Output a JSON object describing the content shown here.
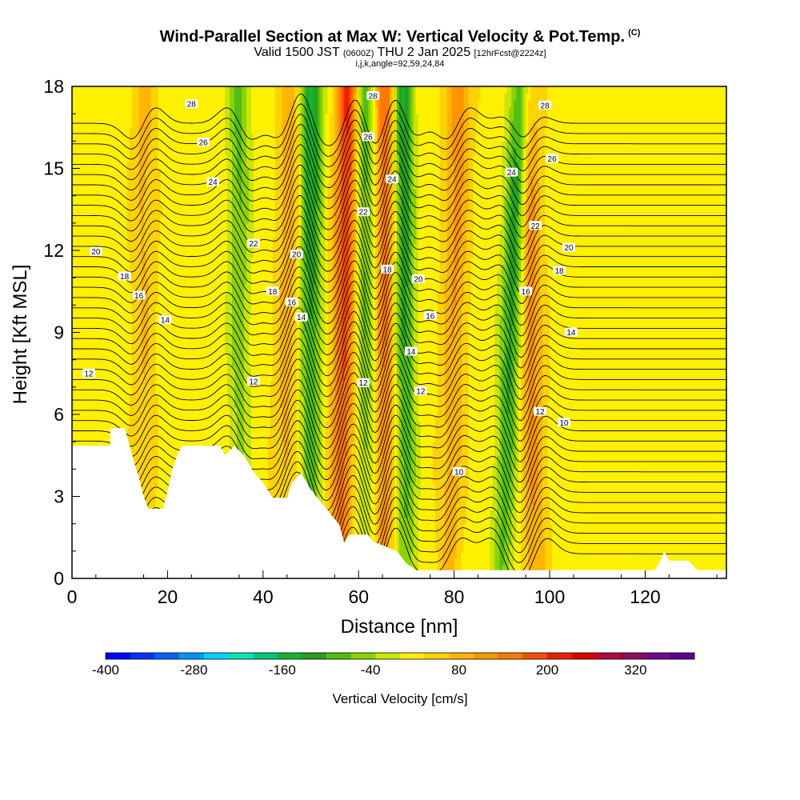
{
  "title": {
    "main": "Wind-Parallel Section at Max W: Vertical Velocity & Pot.Temp.",
    "copyright": "(C)",
    "valid_prefix": "Valid 1500 JST",
    "valid_utc": "(0600Z)",
    "valid_date": "THU 2 Jan 2025",
    "forecast": "[12hrFcst@2224z]",
    "params": "i,j,k,angle=92,59,24,84"
  },
  "chart_data": {
    "type": "heatmap",
    "xlabel": "Distance [nm]",
    "ylabel": "Height [Kft MSL]",
    "xlim": [
      0,
      137
    ],
    "ylim": [
      0,
      18
    ],
    "x_ticks": [
      0,
      20,
      40,
      60,
      80,
      100,
      120
    ],
    "y_ticks": [
      0,
      3,
      6,
      9,
      12,
      15,
      18
    ],
    "colorbar": {
      "label": "Vertical Velocity [cm/s]",
      "range": [
        -400,
        400
      ],
      "tick_values": [
        -400,
        -280,
        -160,
        -40,
        80,
        200,
        320
      ],
      "colors": [
        "#0000ff",
        "#0032ff",
        "#0064ff",
        "#0096ff",
        "#00d2ff",
        "#00e6b4",
        "#00c878",
        "#14b432",
        "#28a01e",
        "#50be14",
        "#8cd200",
        "#c8e600",
        "#fff000",
        "#ffd200",
        "#ffb400",
        "#ff9600",
        "#ff7800",
        "#ff4b00",
        "#f01e00",
        "#dc0000",
        "#b40a32",
        "#8c0a64",
        "#6e0a8c",
        "#5a0096"
      ]
    },
    "potential_temperature_contours": {
      "labeled_values": [
        10,
        12,
        14,
        16,
        18,
        20,
        22,
        24,
        26,
        28
      ],
      "label_positions": [
        {
          "v": 28,
          "x": 25,
          "y": 17.35
        },
        {
          "v": 26,
          "x": 27.5,
          "y": 15.95
        },
        {
          "v": 24,
          "x": 29.5,
          "y": 14.5
        },
        {
          "v": 22,
          "x": 38,
          "y": 12.25
        },
        {
          "v": 20,
          "x": 5,
          "y": 11.95
        },
        {
          "v": 20,
          "x": 47,
          "y": 11.85
        },
        {
          "v": 18,
          "x": 11,
          "y": 11.05
        },
        {
          "v": 16,
          "x": 14,
          "y": 10.35
        },
        {
          "v": 18,
          "x": 42,
          "y": 10.5
        },
        {
          "v": 16,
          "x": 46,
          "y": 10.1
        },
        {
          "v": 14,
          "x": 19.5,
          "y": 9.45
        },
        {
          "v": 14,
          "x": 48,
          "y": 9.55
        },
        {
          "v": 12,
          "x": 3.5,
          "y": 7.5
        },
        {
          "v": 12,
          "x": 38,
          "y": 7.2
        },
        {
          "v": 28,
          "x": 63,
          "y": 17.65
        },
        {
          "v": 26,
          "x": 62,
          "y": 16.15
        },
        {
          "v": 24,
          "x": 67,
          "y": 14.6
        },
        {
          "v": 22,
          "x": 61,
          "y": 13.4
        },
        {
          "v": 18,
          "x": 66,
          "y": 11.3
        },
        {
          "v": 20,
          "x": 72.5,
          "y": 10.95
        },
        {
          "v": 16,
          "x": 75,
          "y": 9.6
        },
        {
          "v": 14,
          "x": 71,
          "y": 8.3
        },
        {
          "v": 12,
          "x": 61,
          "y": 7.15
        },
        {
          "v": 12,
          "x": 73,
          "y": 6.85
        },
        {
          "v": 10,
          "x": 81,
          "y": 3.9
        },
        {
          "v": 28,
          "x": 99,
          "y": 17.3
        },
        {
          "v": 26,
          "x": 100.5,
          "y": 15.35
        },
        {
          "v": 24,
          "x": 92,
          "y": 14.85
        },
        {
          "v": 22,
          "x": 97,
          "y": 12.9
        },
        {
          "v": 20,
          "x": 104,
          "y": 12.1
        },
        {
          "v": 18,
          "x": 102,
          "y": 11.25
        },
        {
          "v": 16,
          "x": 95,
          "y": 10.5
        },
        {
          "v": 14,
          "x": 104.5,
          "y": 9.0
        },
        {
          "v": 12,
          "x": 98,
          "y": 6.1
        },
        {
          "v": 10,
          "x": 103,
          "y": 5.7
        }
      ]
    },
    "updraft_bands": [
      {
        "center_x_bottom": 15,
        "center_x_top": 15,
        "peak_cm_s": 60
      },
      {
        "center_x_bottom": 44,
        "center_x_top": 46,
        "peak_cm_s": 80
      },
      {
        "center_x_bottom": 56,
        "center_x_top": 58,
        "peak_cm_s": 200
      },
      {
        "center_x_bottom": 65,
        "center_x_top": 66,
        "peak_cm_s": 160
      },
      {
        "center_x_bottom": 79,
        "center_x_top": 81,
        "peak_cm_s": 100
      },
      {
        "center_x_bottom": 97,
        "center_x_top": 95,
        "peak_cm_s": 130
      }
    ],
    "downdraft_bands": [
      {
        "center_x_bottom": 35,
        "center_x_top": 35,
        "peak_cm_s": -100
      },
      {
        "center_x_bottom": 50,
        "center_x_top": 50,
        "peak_cm_s": -180
      },
      {
        "center_x_bottom": 62,
        "center_x_top": 61,
        "peak_cm_s": -140
      },
      {
        "center_x_bottom": 70,
        "center_x_top": 69,
        "peak_cm_s": -190
      },
      {
        "center_x_bottom": 90,
        "center_x_top": 94,
        "peak_cm_s": -200
      }
    ],
    "terrain_height_kft": [
      [
        0,
        4.85
      ],
      [
        8,
        4.85
      ],
      [
        8,
        5.5
      ],
      [
        11,
        5.5
      ],
      [
        12,
        4.9
      ],
      [
        13,
        4.25
      ],
      [
        14,
        3.7
      ],
      [
        15,
        3.0
      ],
      [
        16,
        2.55
      ],
      [
        19,
        2.55
      ],
      [
        20,
        3.2
      ],
      [
        21,
        4.0
      ],
      [
        22,
        4.5
      ],
      [
        23,
        4.85
      ],
      [
        31,
        4.85
      ],
      [
        32,
        4.5
      ],
      [
        34,
        4.85
      ],
      [
        36,
        4.5
      ],
      [
        38,
        3.9
      ],
      [
        40,
        3.5
      ],
      [
        42,
        2.95
      ],
      [
        45,
        2.95
      ],
      [
        46,
        3.5
      ],
      [
        48,
        3.85
      ],
      [
        50,
        3.25
      ],
      [
        53,
        2.6
      ],
      [
        56,
        1.95
      ],
      [
        57,
        1.3
      ],
      [
        58,
        1.6
      ],
      [
        62,
        1.6
      ],
      [
        63,
        1.35
      ],
      [
        68,
        1.0
      ],
      [
        70,
        0.55
      ],
      [
        72,
        0.3
      ],
      [
        122,
        0.3
      ],
      [
        123,
        0.6
      ],
      [
        124,
        1.0
      ],
      [
        125,
        0.65
      ],
      [
        129,
        0.65
      ],
      [
        131,
        0.3
      ],
      [
        137,
        0.3
      ]
    ]
  }
}
